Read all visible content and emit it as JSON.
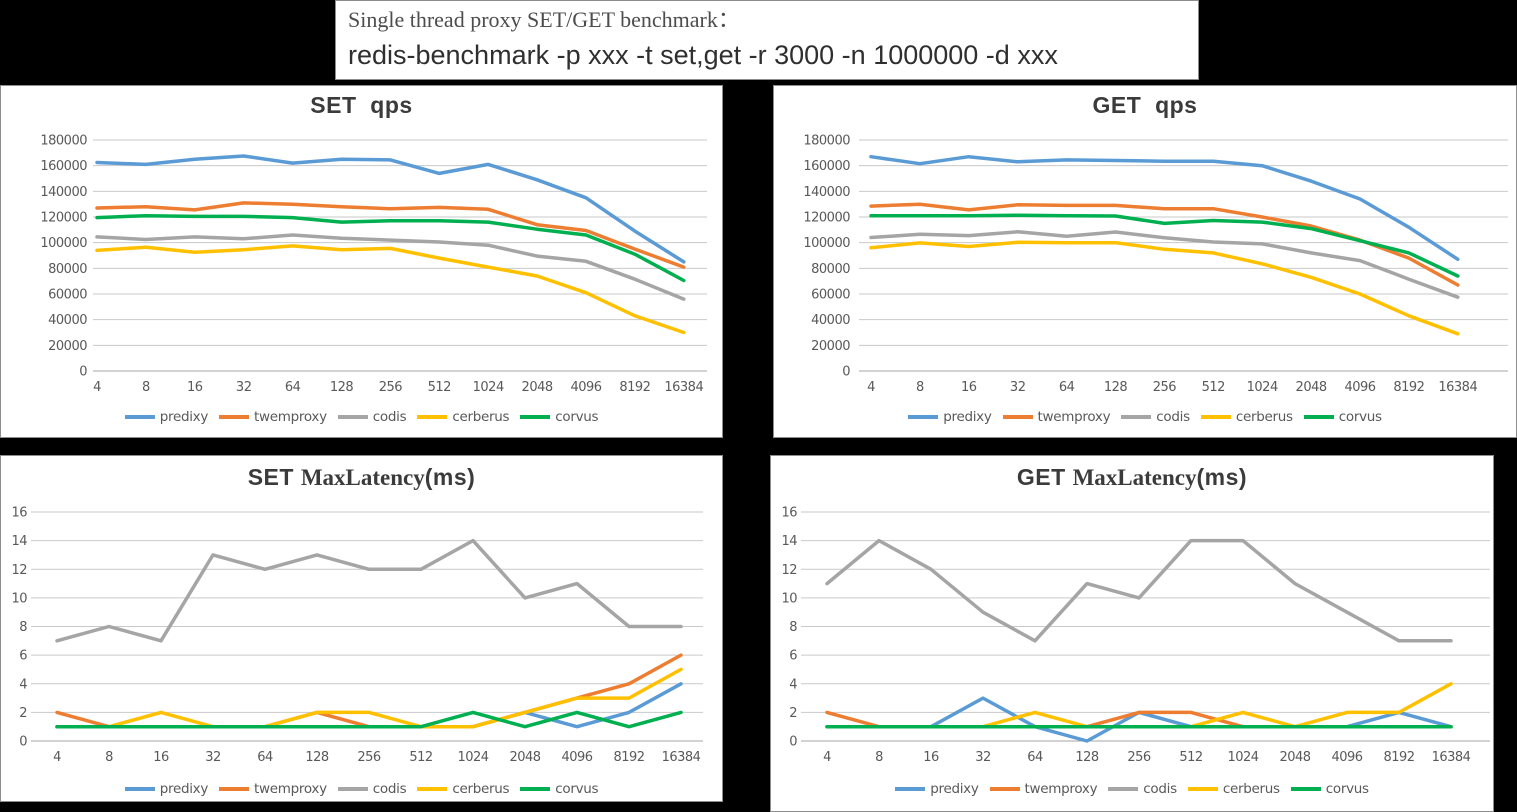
{
  "header": {
    "line1": "Single thread proxy SET/GET benchmark：",
    "line2": "redis-benchmark -p xxx -t set,get -r 3000 -n 1000000 -d xxx"
  },
  "colors": {
    "predixy": "#5B9BD5",
    "twemproxy": "#ED7D31",
    "codis": "#A5A5A5",
    "cerberus": "#FFC000",
    "corvus": "#00B050",
    "gridline": "#C9C9C9",
    "axis_line": "#A6A6A6",
    "axis_text": "#595959",
    "title_text": "#3B3B3B"
  },
  "legend": [
    "predixy",
    "twemproxy",
    "codis",
    "cerberus",
    "corvus"
  ],
  "chart_data": [
    {
      "id": "set-qps",
      "type": "line",
      "title": "SET  qps",
      "title_parts": [
        {
          "text": "SET  qps",
          "style": "bold"
        }
      ],
      "categories": [
        "4",
        "8",
        "16",
        "32",
        "64",
        "128",
        "256",
        "512",
        "1024",
        "2048",
        "4096",
        "8192",
        "16384"
      ],
      "xlabel": "",
      "ylabel": "",
      "ylim": [
        0,
        180000
      ],
      "ytick_step": 20000,
      "grid": true,
      "legend_position": "bottom",
      "series": [
        {
          "name": "predixy",
          "values": [
            162500,
            161000,
            165000,
            167500,
            162000,
            165000,
            164500,
            154000,
            161000,
            149000,
            135000,
            109000,
            85000
          ]
        },
        {
          "name": "twemproxy",
          "values": [
            127000,
            128000,
            125500,
            131000,
            130000,
            128000,
            126500,
            127500,
            126000,
            114000,
            109500,
            95000,
            81000
          ]
        },
        {
          "name": "codis",
          "values": [
            104500,
            102500,
            104500,
            103000,
            106000,
            103500,
            102000,
            100500,
            98000,
            89500,
            85500,
            71500,
            56000
          ]
        },
        {
          "name": "cerberus",
          "values": [
            94000,
            96500,
            92500,
            94500,
            97500,
            94500,
            95500,
            88000,
            81000,
            74000,
            61000,
            43000,
            30000
          ]
        },
        {
          "name": "corvus",
          "values": [
            119500,
            121000,
            120500,
            120500,
            119500,
            116000,
            117000,
            117000,
            116000,
            110500,
            106000,
            91000,
            70500
          ]
        }
      ]
    },
    {
      "id": "get-qps",
      "type": "line",
      "title": "GET  qps",
      "title_parts": [
        {
          "text": "GET  qps",
          "style": "bold"
        }
      ],
      "categories": [
        "4",
        "8",
        "16",
        "32",
        "64",
        "128",
        "256",
        "512",
        "1024",
        "2048",
        "4096",
        "8192",
        "16384"
      ],
      "xlabel": "",
      "ylabel": "",
      "ylim": [
        0,
        180000
      ],
      "ytick_step": 20000,
      "grid": true,
      "legend_position": "bottom",
      "series": [
        {
          "name": "predixy",
          "values": [
            167000,
            161500,
            167000,
            163000,
            164500,
            164000,
            163500,
            163500,
            160000,
            148000,
            134000,
            112000,
            87000
          ]
        },
        {
          "name": "twemproxy",
          "values": [
            128500,
            130000,
            125500,
            129500,
            129000,
            129000,
            126500,
            126500,
            120000,
            113000,
            102000,
            88000,
            67000
          ]
        },
        {
          "name": "codis",
          "values": [
            104000,
            106500,
            105500,
            108500,
            105000,
            108300,
            103800,
            100500,
            99000,
            92000,
            86000,
            71500,
            57500
          ]
        },
        {
          "name": "cerberus",
          "values": [
            96000,
            99800,
            97000,
            100300,
            100000,
            100000,
            94800,
            92000,
            83500,
            73000,
            60000,
            43000,
            29000
          ]
        },
        {
          "name": "corvus",
          "values": [
            121000,
            121000,
            121000,
            121300,
            121000,
            120800,
            115000,
            117300,
            116000,
            111000,
            101500,
            92000,
            74000
          ]
        }
      ]
    },
    {
      "id": "set-maxlatency",
      "type": "line",
      "title": "SET MaxLatency(ms)",
      "title_parts": [
        {
          "text": "SET ",
          "style": "bold"
        },
        {
          "text": "MaxLatency",
          "style": "serif"
        },
        {
          "text": "(ms)",
          "style": "bold"
        }
      ],
      "categories": [
        "4",
        "8",
        "16",
        "32",
        "64",
        "128",
        "256",
        "512",
        "1024",
        "2048",
        "4096",
        "8192",
        "16384"
      ],
      "xlabel": "",
      "ylabel": "",
      "ylim": [
        0,
        16
      ],
      "ytick_step": 2,
      "grid": true,
      "legend_position": "bottom",
      "series": [
        {
          "name": "predixy",
          "values": [
            1,
            1,
            1,
            1,
            1,
            1,
            1,
            1,
            1,
            2,
            1,
            2,
            4
          ]
        },
        {
          "name": "twemproxy",
          "values": [
            2,
            1,
            1,
            1,
            1,
            2,
            1,
            1,
            1,
            2,
            3,
            4,
            6
          ]
        },
        {
          "name": "codis",
          "values": [
            7,
            8,
            7,
            13,
            12,
            13,
            12,
            12,
            14,
            10,
            11,
            8,
            8
          ]
        },
        {
          "name": "cerberus",
          "values": [
            1,
            1,
            2,
            1,
            1,
            2,
            2,
            1,
            1,
            2,
            3,
            3,
            5
          ]
        },
        {
          "name": "corvus",
          "values": [
            1,
            1,
            1,
            1,
            1,
            1,
            1,
            1,
            2,
            1,
            2,
            1,
            2
          ]
        }
      ]
    },
    {
      "id": "get-maxlatency",
      "type": "line",
      "title": "GET MaxLatency(ms)",
      "title_parts": [
        {
          "text": "GET ",
          "style": "bold"
        },
        {
          "text": "MaxLatency",
          "style": "serif"
        },
        {
          "text": "(ms)",
          "style": "bold"
        }
      ],
      "categories": [
        "4",
        "8",
        "16",
        "32",
        "64",
        "128",
        "256",
        "512",
        "1024",
        "2048",
        "4096",
        "8192",
        "16384"
      ],
      "xlabel": "",
      "ylabel": "",
      "ylim": [
        0,
        16
      ],
      "ytick_step": 2,
      "grid": true,
      "legend_position": "bottom",
      "series": [
        {
          "name": "predixy",
          "values": [
            1,
            1,
            1,
            3,
            1,
            0,
            2,
            1,
            1,
            1,
            1,
            2,
            1
          ]
        },
        {
          "name": "twemproxy",
          "values": [
            2,
            1,
            1,
            1,
            1,
            1,
            2,
            2,
            1,
            1,
            1,
            1,
            1
          ]
        },
        {
          "name": "codis",
          "values": [
            11,
            14,
            12,
            9,
            7,
            11,
            10,
            14,
            14,
            11,
            9,
            7,
            7
          ]
        },
        {
          "name": "cerberus",
          "values": [
            1,
            1,
            1,
            1,
            2,
            1,
            1,
            1,
            2,
            1,
            2,
            2,
            4
          ]
        },
        {
          "name": "corvus",
          "values": [
            1,
            1,
            1,
            1,
            1,
            1,
            1,
            1,
            1,
            1,
            1,
            1,
            1
          ]
        }
      ]
    }
  ]
}
